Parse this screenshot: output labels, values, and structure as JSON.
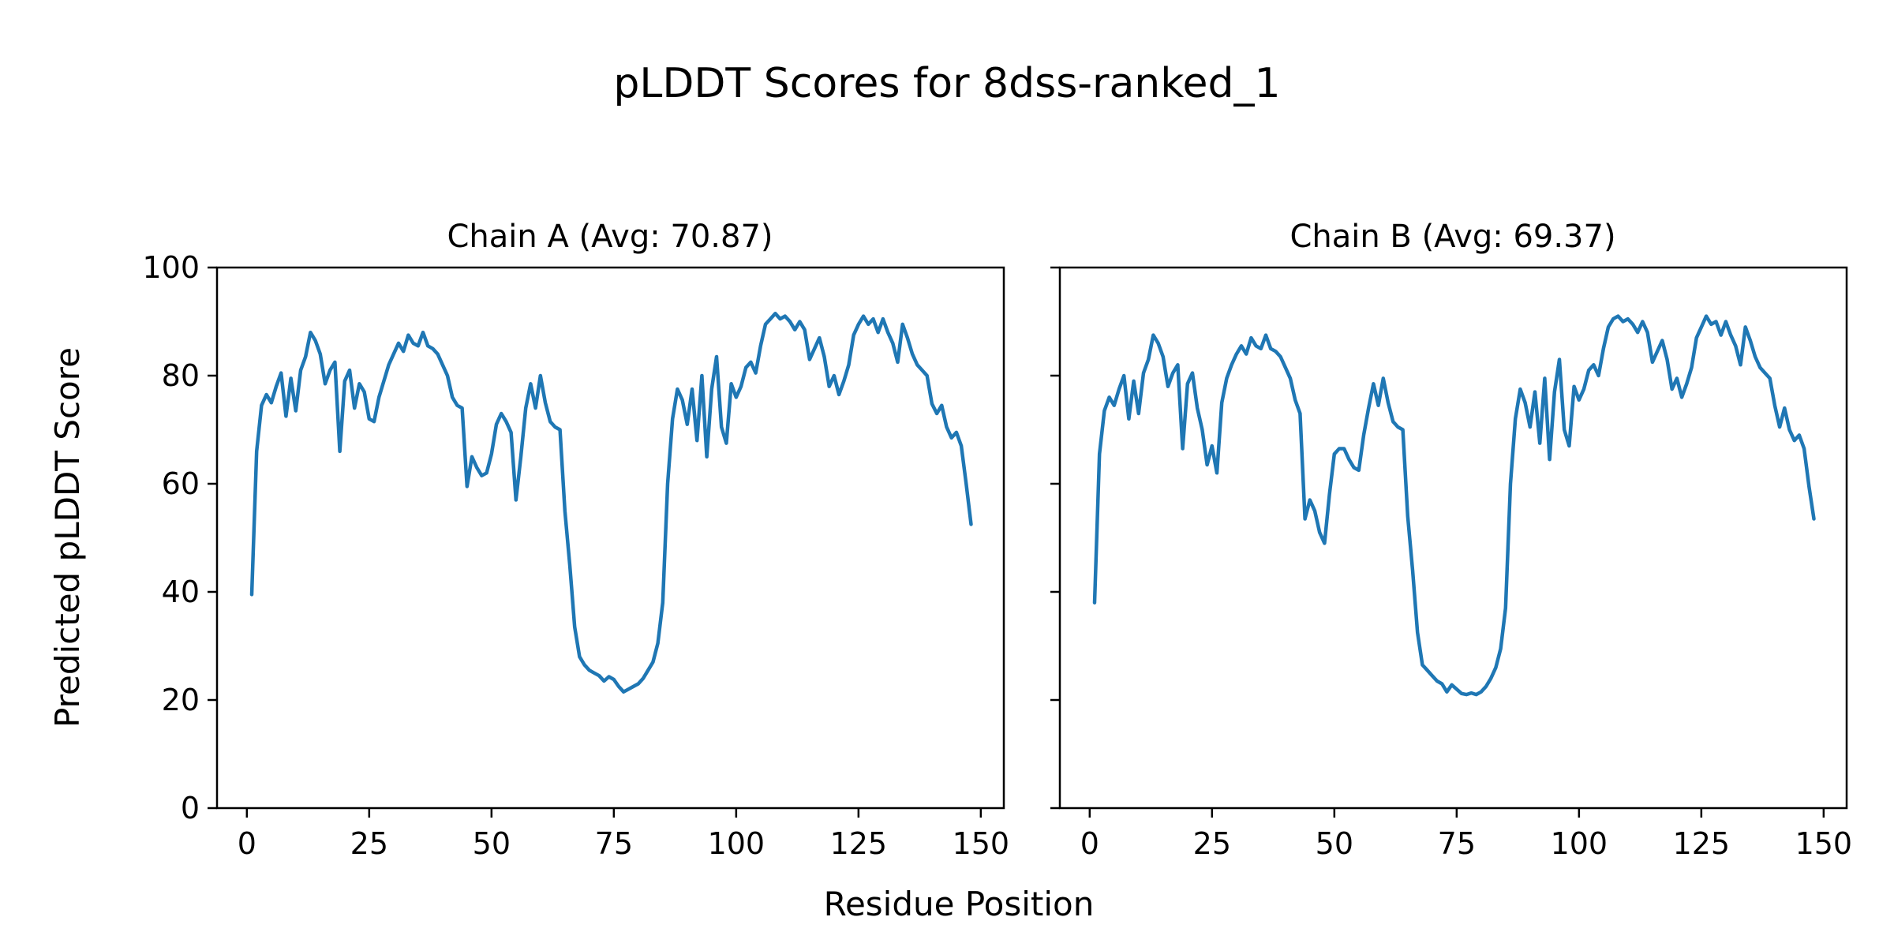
{
  "figure": {
    "suptitle": "pLDDT Scores for 8dss-ranked_1",
    "xlabel": "Residue Position",
    "ylabel": "Predicted pLDDT Score",
    "background_color": "#ffffff",
    "line_color": "#1f77b4",
    "axis_color": "#000000"
  },
  "chart_data": [
    {
      "type": "line",
      "title": "Chain A (Avg: 70.87)",
      "average": 70.87,
      "xlabel": "Residue Position",
      "ylabel": "Predicted pLDDT Score",
      "xlim": [
        -6.1,
        154.7
      ],
      "ylim": [
        0,
        100
      ],
      "xticks": [
        0,
        25,
        50,
        75,
        100,
        125,
        150
      ],
      "yticks": [
        0,
        20,
        40,
        60,
        80,
        100
      ],
      "grid": false,
      "legend": "none",
      "series": [
        {
          "name": "Chain A pLDDT",
          "x_start": 1,
          "values": [
            39.5,
            66,
            74.5,
            76.5,
            75,
            78,
            80.5,
            72.5,
            79.5,
            73.5,
            81,
            83.5,
            88,
            86.5,
            84,
            78.5,
            81,
            82.5,
            66,
            79,
            81,
            74,
            78.5,
            77,
            72,
            71.5,
            76,
            79,
            82,
            84,
            86,
            84.5,
            87.5,
            86,
            85.5,
            88,
            85.5,
            85,
            84,
            82,
            80,
            76,
            74.5,
            74,
            59.5,
            65,
            63,
            61.5,
            62,
            65.5,
            71,
            73,
            71.5,
            69.5,
            57,
            65,
            74,
            78.5,
            74,
            80,
            75,
            71.5,
            70.5,
            70,
            55,
            45,
            33.5,
            28,
            26.5,
            25.5,
            25,
            24.5,
            23.5,
            24.3,
            23.8,
            22.5,
            21.5,
            22,
            22.5,
            23,
            24,
            25.5,
            27,
            30.5,
            38,
            60,
            72,
            77.5,
            75.5,
            71,
            77.5,
            68,
            80,
            65,
            77.5,
            83.5,
            70.5,
            67.5,
            78.5,
            76,
            78,
            81.5,
            82.5,
            80.5,
            85.5,
            89.5,
            90.5,
            91.5,
            90.5,
            91,
            90,
            88.5,
            90,
            88.5,
            83,
            85,
            87,
            83.5,
            78,
            80,
            76.5,
            79,
            82,
            87.5,
            89.5,
            91,
            89.5,
            90.5,
            88,
            90.5,
            88,
            86,
            82.5,
            89.5,
            87,
            84,
            82,
            81,
            80,
            74.8,
            73,
            74.5,
            70.5,
            68.5,
            69.5,
            67,
            60,
            52.5
          ]
        }
      ]
    },
    {
      "type": "line",
      "title": "Chain B (Avg: 69.37)",
      "average": 69.37,
      "xlabel": "Residue Position",
      "ylabel": "Predicted pLDDT Score",
      "xlim": [
        -6.1,
        154.7
      ],
      "ylim": [
        0,
        100
      ],
      "xticks": [
        0,
        25,
        50,
        75,
        100,
        125,
        150
      ],
      "yticks": [
        0,
        20,
        40,
        60,
        80,
        100
      ],
      "grid": false,
      "legend": "none",
      "series": [
        {
          "name": "Chain B pLDDT",
          "x_start": 1,
          "values": [
            38,
            65.5,
            73.5,
            76,
            74.5,
            77.5,
            80,
            72,
            79,
            73,
            80.5,
            83,
            87.5,
            86,
            83.5,
            78,
            80.5,
            82,
            66.5,
            78.5,
            80.5,
            74,
            70,
            63.5,
            67,
            62,
            75,
            79.5,
            82,
            84,
            85.5,
            84,
            87,
            85.5,
            85,
            87.5,
            85,
            84.5,
            83.5,
            81.5,
            79.5,
            75.5,
            73,
            53.5,
            57,
            55,
            51,
            49,
            58,
            65.5,
            66.5,
            66.5,
            64.5,
            63,
            62.5,
            69,
            74,
            78.5,
            74.5,
            79.5,
            75,
            71.5,
            70.5,
            70,
            54,
            44,
            32.5,
            26.5,
            25.5,
            24.5,
            23.5,
            23,
            21.5,
            22.8,
            22,
            21.2,
            21,
            21.3,
            21,
            21.5,
            22.5,
            24,
            26,
            29.5,
            37,
            60,
            72,
            77.5,
            75,
            70.5,
            77,
            67.5,
            79.5,
            64.5,
            77,
            83,
            70,
            67,
            78,
            75.5,
            77.5,
            81,
            82,
            80,
            85,
            89,
            90.5,
            91,
            90,
            90.5,
            89.5,
            88,
            90,
            88,
            82.5,
            84.5,
            86.5,
            83,
            77.5,
            79.5,
            76,
            78.5,
            81.5,
            87,
            89,
            91,
            89.5,
            90,
            87.5,
            90,
            87.5,
            85.5,
            82,
            89,
            86.5,
            83.5,
            81.5,
            80.5,
            79.5,
            74.5,
            70.5,
            74,
            70,
            68,
            69,
            66.5,
            59.5,
            53.5
          ]
        }
      ]
    }
  ]
}
